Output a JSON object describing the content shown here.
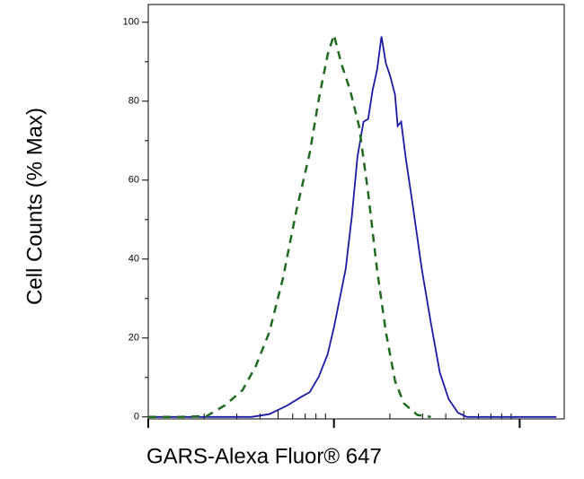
{
  "chart_data": {
    "type": "line",
    "x_label": "GARS-Alexa Fluor® 647",
    "y_label": "Cell Counts (% Max)",
    "xlim": [
      100,
      17378
    ],
    "xscale": "log",
    "xticks": [
      100,
      1000,
      10000
    ],
    "ylim": [
      -0.5,
      104.5
    ],
    "yticks": [
      0,
      20,
      40,
      60,
      80,
      100
    ],
    "series": [
      {
        "color": "#1a1aa6",
        "dash": false,
        "x": [
          100,
          360,
          449,
          561,
          662,
          741,
          828,
          925,
          1000,
          1069,
          1156,
          1250,
          1337,
          1443,
          1528,
          1614,
          1706,
          1803,
          1905,
          2014,
          2133,
          2203,
          2301,
          2432,
          2661,
          2972,
          3327,
          3715,
          4150,
          4645,
          5188,
          6486,
          15776
        ],
        "values": [
          0,
          0,
          0.7,
          2.9,
          5.0,
          6.3,
          10.2,
          15.9,
          22.7,
          29.5,
          37.4,
          51.0,
          65.8,
          74.8,
          75.5,
          82.8,
          87.8,
          96.4,
          89.6,
          86.2,
          81.6,
          73.7,
          74.8,
          65.8,
          53.3,
          37.4,
          23.8,
          11.3,
          4.5,
          1.1,
          0,
          0,
          0
        ]
      },
      {
        "color": "#1e6b1e",
        "dash": true,
        "x": [
          100,
          147,
          206,
          258,
          322,
          380,
          449,
          531,
          627,
          741,
          828,
          925,
          1000,
          1094,
          1222,
          1365,
          1528,
          1706,
          1905,
          2133,
          2382,
          2812,
          3327
        ],
        "values": [
          0,
          0,
          0.2,
          2.9,
          6.8,
          12.9,
          21.5,
          35.1,
          52.2,
          66.9,
          80.5,
          91.8,
          96.8,
          89.6,
          82.8,
          73.7,
          56.7,
          37.4,
          21.5,
          9.1,
          3.4,
          0.5,
          0
        ]
      }
    ]
  }
}
